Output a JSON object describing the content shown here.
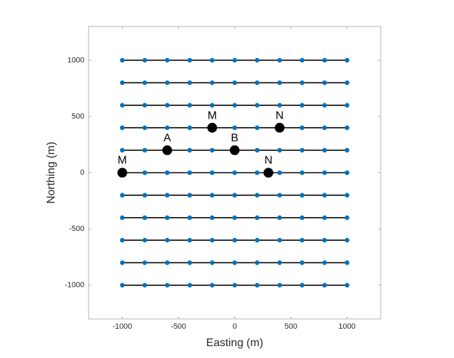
{
  "chart_data": {
    "type": "line",
    "xlabel": "Easting (m)",
    "ylabel": "Northing (m)",
    "x": [
      -1000,
      -800,
      -600,
      -400,
      -200,
      0,
      200,
      400,
      600,
      800,
      1000
    ],
    "series": [
      {
        "color": "#000000",
        "marker_color": "#0072bd",
        "values": [
          1000,
          1000,
          1000,
          1000,
          1000,
          1000,
          1000,
          1000,
          1000,
          1000,
          1000
        ]
      },
      {
        "color": "#000000",
        "marker_color": "#0072bd",
        "values": [
          800,
          800,
          800,
          800,
          800,
          800,
          800,
          800,
          800,
          800,
          800
        ]
      },
      {
        "color": "#000000",
        "marker_color": "#0072bd",
        "values": [
          600,
          600,
          600,
          600,
          600,
          600,
          600,
          600,
          600,
          600,
          600
        ]
      },
      {
        "color": "#000000",
        "marker_color": "#0072bd",
        "values": [
          400,
          400,
          400,
          400,
          400,
          400,
          400,
          400,
          400,
          400,
          400
        ]
      },
      {
        "color": "#000000",
        "marker_color": "#0072bd",
        "values": [
          200,
          200,
          200,
          200,
          200,
          200,
          200,
          200,
          200,
          200,
          200
        ]
      },
      {
        "color": "#000000",
        "marker_color": "#0072bd",
        "values": [
          0,
          0,
          0,
          0,
          0,
          0,
          0,
          0,
          0,
          0,
          0
        ]
      },
      {
        "color": "#000000",
        "marker_color": "#0072bd",
        "values": [
          -200,
          -200,
          -200,
          -200,
          -200,
          -200,
          -200,
          -200,
          -200,
          -200,
          -200
        ]
      },
      {
        "color": "#000000",
        "marker_color": "#0072bd",
        "values": [
          -400,
          -400,
          -400,
          -400,
          -400,
          -400,
          -400,
          -400,
          -400,
          -400,
          -400
        ]
      },
      {
        "color": "#000000",
        "marker_color": "#0072bd",
        "values": [
          -600,
          -600,
          -600,
          -600,
          -600,
          -600,
          -600,
          -600,
          -600,
          -600,
          -600
        ]
      },
      {
        "color": "#000000",
        "marker_color": "#0072bd",
        "values": [
          -800,
          -800,
          -800,
          -800,
          -800,
          -800,
          -800,
          -800,
          -800,
          -800,
          -800
        ]
      },
      {
        "color": "#000000",
        "marker_color": "#0072bd",
        "values": [
          -1000,
          -1000,
          -1000,
          -1000,
          -1000,
          -1000,
          -1000,
          -1000,
          -1000,
          -1000,
          -1000
        ]
      }
    ],
    "annotations": [
      {
        "label": "M",
        "x": -1000,
        "y": 0,
        "color": "#000000"
      },
      {
        "label": "A",
        "x": -600,
        "y": 200,
        "color": "#000000"
      },
      {
        "label": "B",
        "x": 0,
        "y": 200,
        "color": "#000000"
      },
      {
        "label": "N",
        "x": 300,
        "y": 0,
        "color": "#000000"
      },
      {
        "label": "M",
        "x": -200,
        "y": 400,
        "color": "#000000"
      },
      {
        "label": "N",
        "x": 400,
        "y": 400,
        "color": "#000000"
      }
    ],
    "xlim": [
      -1300,
      1300
    ],
    "ylim": [
      -1300,
      1300
    ],
    "xticks": [
      -1000,
      -500,
      0,
      500,
      1000
    ],
    "yticks": [
      -1000,
      -500,
      0,
      500,
      1000
    ],
    "grid": false
  }
}
